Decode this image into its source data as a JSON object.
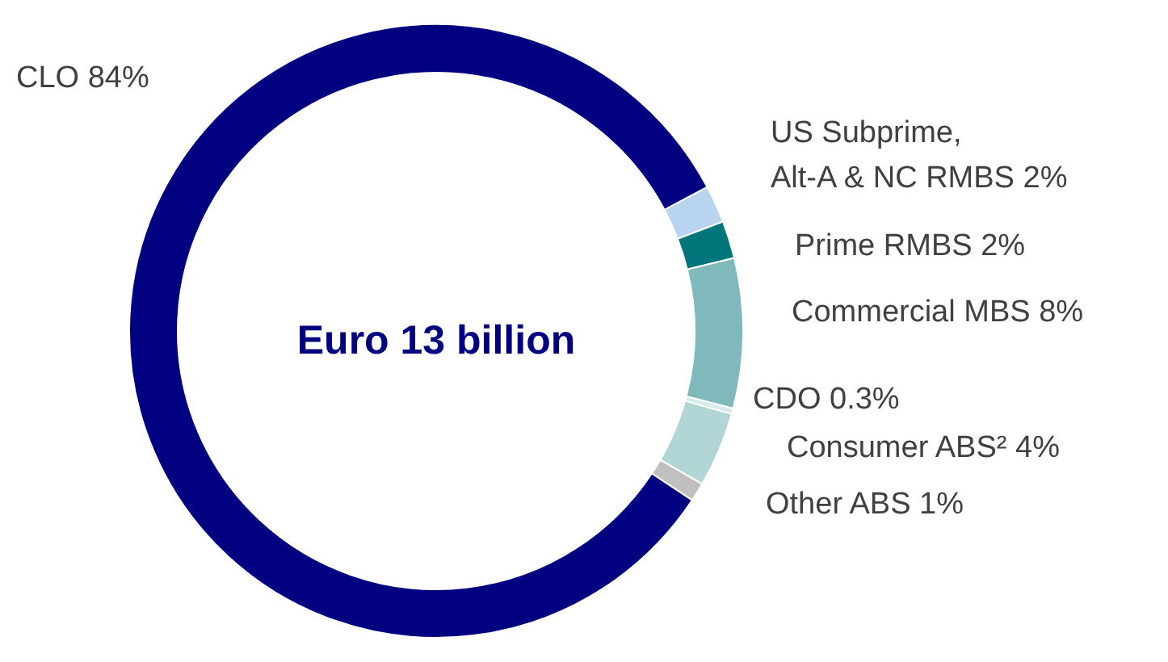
{
  "chart_data": {
    "type": "donut",
    "title": "Euro 13 billion",
    "categories": [
      "US Subprime, Alt-A & NC RMBS",
      "Prime RMBS",
      "Commercial MBS",
      "CDO",
      "Consumer ABS²",
      "Other ABS",
      "CLO"
    ],
    "values": [
      2,
      2,
      8,
      0.3,
      4,
      1,
      84
    ],
    "value_labels": [
      "2%",
      "2%",
      "8%",
      "0.3%",
      "4%",
      "1%",
      "84%"
    ],
    "colors": [
      "#b8d4ee",
      "#00757a",
      "#7fb9bb",
      "#d4ecec",
      "#b2d5d6",
      "#c0c0c0",
      "#000080"
    ]
  }
}
